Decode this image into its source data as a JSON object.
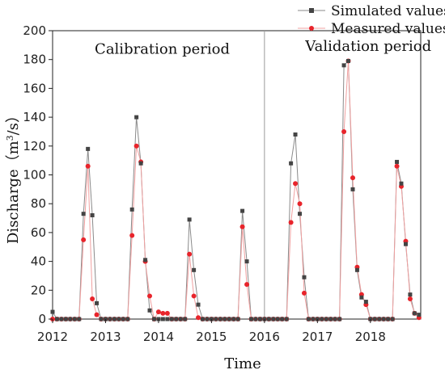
{
  "chart_data": {
    "type": "line",
    "xlabel": "Time",
    "ylabel_prefix": "Discharge（m",
    "ylabel_sup": "3",
    "ylabel_suffix": "/s）",
    "xlim": [
      2012,
      2018.95
    ],
    "ylim": [
      0,
      200
    ],
    "x_ticks": [
      2012,
      2013,
      2014,
      2015,
      2016,
      2017,
      2018
    ],
    "y_ticks": [
      0,
      20,
      40,
      60,
      80,
      100,
      120,
      140,
      160,
      180,
      200
    ],
    "grid": false,
    "legend": "top-right",
    "split_x": 2016,
    "annotations": [
      {
        "text": "Calibration period",
        "x": 2014.07,
        "y": 184
      },
      {
        "text": "Validation period",
        "x": 2017.96,
        "y": 186
      }
    ],
    "colors": {
      "simulated": "#444444",
      "simulated_line": "#8a8a8a",
      "measured": "#e8242b",
      "measured_line": "#f0a0a0",
      "divider": "#9a9a9a"
    },
    "x": [
      2012,
      2012.083,
      2012.167,
      2012.25,
      2012.333,
      2012.417,
      2012.5,
      2012.583,
      2012.667,
      2012.75,
      2012.833,
      2012.917,
      2013,
      2013.083,
      2013.167,
      2013.25,
      2013.333,
      2013.417,
      2013.5,
      2013.583,
      2013.667,
      2013.75,
      2013.833,
      2013.917,
      2014,
      2014.083,
      2014.167,
      2014.25,
      2014.333,
      2014.417,
      2014.5,
      2014.583,
      2014.667,
      2014.75,
      2014.833,
      2014.917,
      2015,
      2015.083,
      2015.167,
      2015.25,
      2015.333,
      2015.417,
      2015.5,
      2015.583,
      2015.667,
      2015.75,
      2015.833,
      2015.917,
      2016,
      2016.083,
      2016.167,
      2016.25,
      2016.333,
      2016.417,
      2016.5,
      2016.583,
      2016.667,
      2016.75,
      2016.833,
      2016.917,
      2017,
      2017.083,
      2017.167,
      2017.25,
      2017.333,
      2017.417,
      2017.5,
      2017.583,
      2017.667,
      2017.75,
      2017.833,
      2017.917,
      2018,
      2018.083,
      2018.167,
      2018.25,
      2018.333,
      2018.417,
      2018.5,
      2018.583,
      2018.667,
      2018.75,
      2018.833,
      2018.917
    ],
    "series": [
      {
        "name": "Simulated values",
        "marker": "square",
        "values": [
          5,
          0,
          0,
          0,
          0,
          0,
          0,
          73,
          118,
          72,
          11,
          0,
          0,
          0,
          0,
          0,
          0,
          0,
          76,
          140,
          108,
          41,
          6,
          0,
          0,
          0,
          0,
          0,
          0,
          0,
          0,
          69,
          34,
          10,
          0,
          0,
          0,
          0,
          0,
          0,
          0,
          0,
          0,
          75,
          40,
          0,
          0,
          0,
          0,
          0,
          0,
          0,
          0,
          0,
          108,
          128,
          73,
          29,
          0,
          0,
          0,
          0,
          0,
          0,
          0,
          0,
          176,
          179,
          90,
          34,
          15,
          12,
          0,
          0,
          0,
          0,
          0,
          0,
          109,
          94,
          52,
          17,
          4,
          3
        ]
      },
      {
        "name": "Measured values",
        "marker": "circle",
        "values": [
          0,
          0,
          0,
          0,
          0,
          0,
          0,
          55,
          106,
          14,
          3,
          0,
          0,
          0,
          0,
          0,
          0,
          0,
          58,
          120,
          109,
          40,
          16,
          0,
          5,
          4,
          4,
          0,
          0,
          0,
          0,
          45,
          16,
          1,
          0,
          0,
          0,
          0,
          0,
          0,
          0,
          0,
          0,
          64,
          24,
          0,
          0,
          0,
          0,
          0,
          0,
          0,
          0,
          0,
          67,
          94,
          80,
          18,
          0,
          0,
          0,
          0,
          0,
          0,
          0,
          0,
          130,
          179,
          98,
          36,
          17,
          10,
          0,
          0,
          0,
          0,
          0,
          0,
          106,
          92,
          54,
          14,
          4,
          1
        ]
      }
    ]
  }
}
